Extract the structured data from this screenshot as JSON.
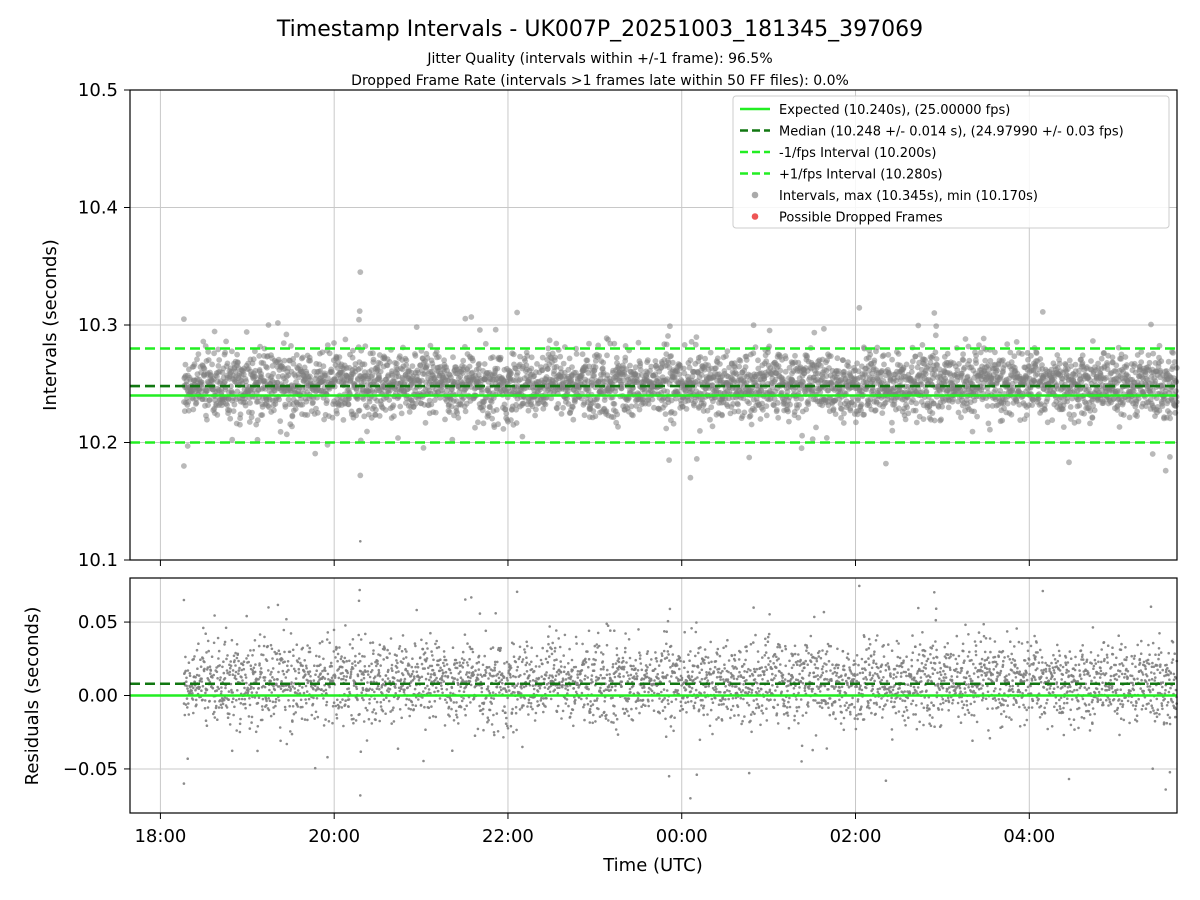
{
  "title": "Timestamp Intervals - UK007P_20251003_181345_397069",
  "subtitle_1": "Jitter Quality (intervals within +/-1 frame): 96.5%",
  "subtitle_2": "Dropped Frame Rate (intervals >1 frames late within 50 FF files): 0.0%",
  "colors": {
    "expected": "#22ee22",
    "median": "#117711",
    "interval_line": "#22ee22",
    "points": "#808080",
    "dropped": "#ee5555",
    "grid": "#c8c8c8"
  },
  "chart_data": [
    {
      "type": "scatter",
      "panel": "top",
      "ylabel": "Intervals (seconds)",
      "ylim": [
        10.1,
        10.5
      ],
      "yticks": [
        10.1,
        10.2,
        10.3,
        10.4,
        10.5
      ],
      "ytick_labels": [
        "10.1",
        "10.2",
        "10.3",
        "10.4",
        "10.5"
      ],
      "xlim": [
        17.65,
        29.7
      ],
      "grid": true,
      "lines": [
        {
          "name": "Expected",
          "y": 10.24,
          "style": "solid",
          "color": "#22ee22"
        },
        {
          "name": "Median",
          "y": 10.248,
          "style": "dashed",
          "color": "#117711"
        },
        {
          "name": "-1/fps Interval",
          "y": 10.2,
          "style": "dashed",
          "color": "#22ee22"
        },
        {
          "name": "+1/fps Interval",
          "y": 10.28,
          "style": "dashed",
          "color": "#22ee22"
        }
      ],
      "legend_position": "top-right",
      "legend": [
        {
          "label": "Expected (10.240s), (25.00000 fps)",
          "kind": "solid",
          "color": "#22ee22"
        },
        {
          "label": "Median (10.248 +/- 0.014 s), (24.97990 +/- 0.03 fps)",
          "kind": "dashed",
          "color": "#117711"
        },
        {
          "label": "-1/fps Interval (10.200s)",
          "kind": "dashed",
          "color": "#22ee22"
        },
        {
          "label": "+1/fps Interval (10.280s)",
          "kind": "dashed",
          "color": "#22ee22"
        },
        {
          "label": "Intervals, max (10.345s), min (10.170s)",
          "kind": "marker",
          "color": "#aaaaaa"
        },
        {
          "label": "Possible Dropped Frames",
          "kind": "marker",
          "color": "#ee5555"
        }
      ],
      "series": {
        "name": "Intervals",
        "time_start_hours": 18.27,
        "time_end_hours": 29.7,
        "count": 4000,
        "center": 10.249,
        "std": 0.014,
        "max": 10.345,
        "min": 10.17,
        "notable_points": [
          {
            "x": 20.3,
            "y": 10.345
          },
          {
            "x": 24.1,
            "y": 10.17
          },
          {
            "x": 20.3,
            "y": 10.172
          },
          {
            "x": 18.27,
            "y": 10.305
          },
          {
            "x": 18.27,
            "y": 10.18
          },
          {
            "x": 26.35,
            "y": 10.182
          },
          {
            "x": 29.57,
            "y": 10.176
          }
        ]
      }
    },
    {
      "type": "scatter",
      "panel": "bottom",
      "ylabel": "Residuals (seconds)",
      "xlabel": "Time (UTC)",
      "ylim": [
        -0.08,
        0.08
      ],
      "yticks": [
        -0.05,
        0.0,
        0.05
      ],
      "ytick_labels": [
        "−0.05",
        "0.00",
        "0.05"
      ],
      "xlim": [
        17.65,
        29.7
      ],
      "xticks": [
        18,
        20,
        22,
        24,
        26,
        28
      ],
      "xtick_labels": [
        "18:00",
        "20:00",
        "22:00",
        "00:00",
        "02:00",
        "04:00"
      ],
      "grid": true,
      "lines": [
        {
          "name": "Expected",
          "y": 0.0,
          "style": "solid",
          "color": "#22ee22"
        },
        {
          "name": "Median",
          "y": 0.008,
          "style": "dashed",
          "color": "#117711"
        }
      ]
    }
  ]
}
